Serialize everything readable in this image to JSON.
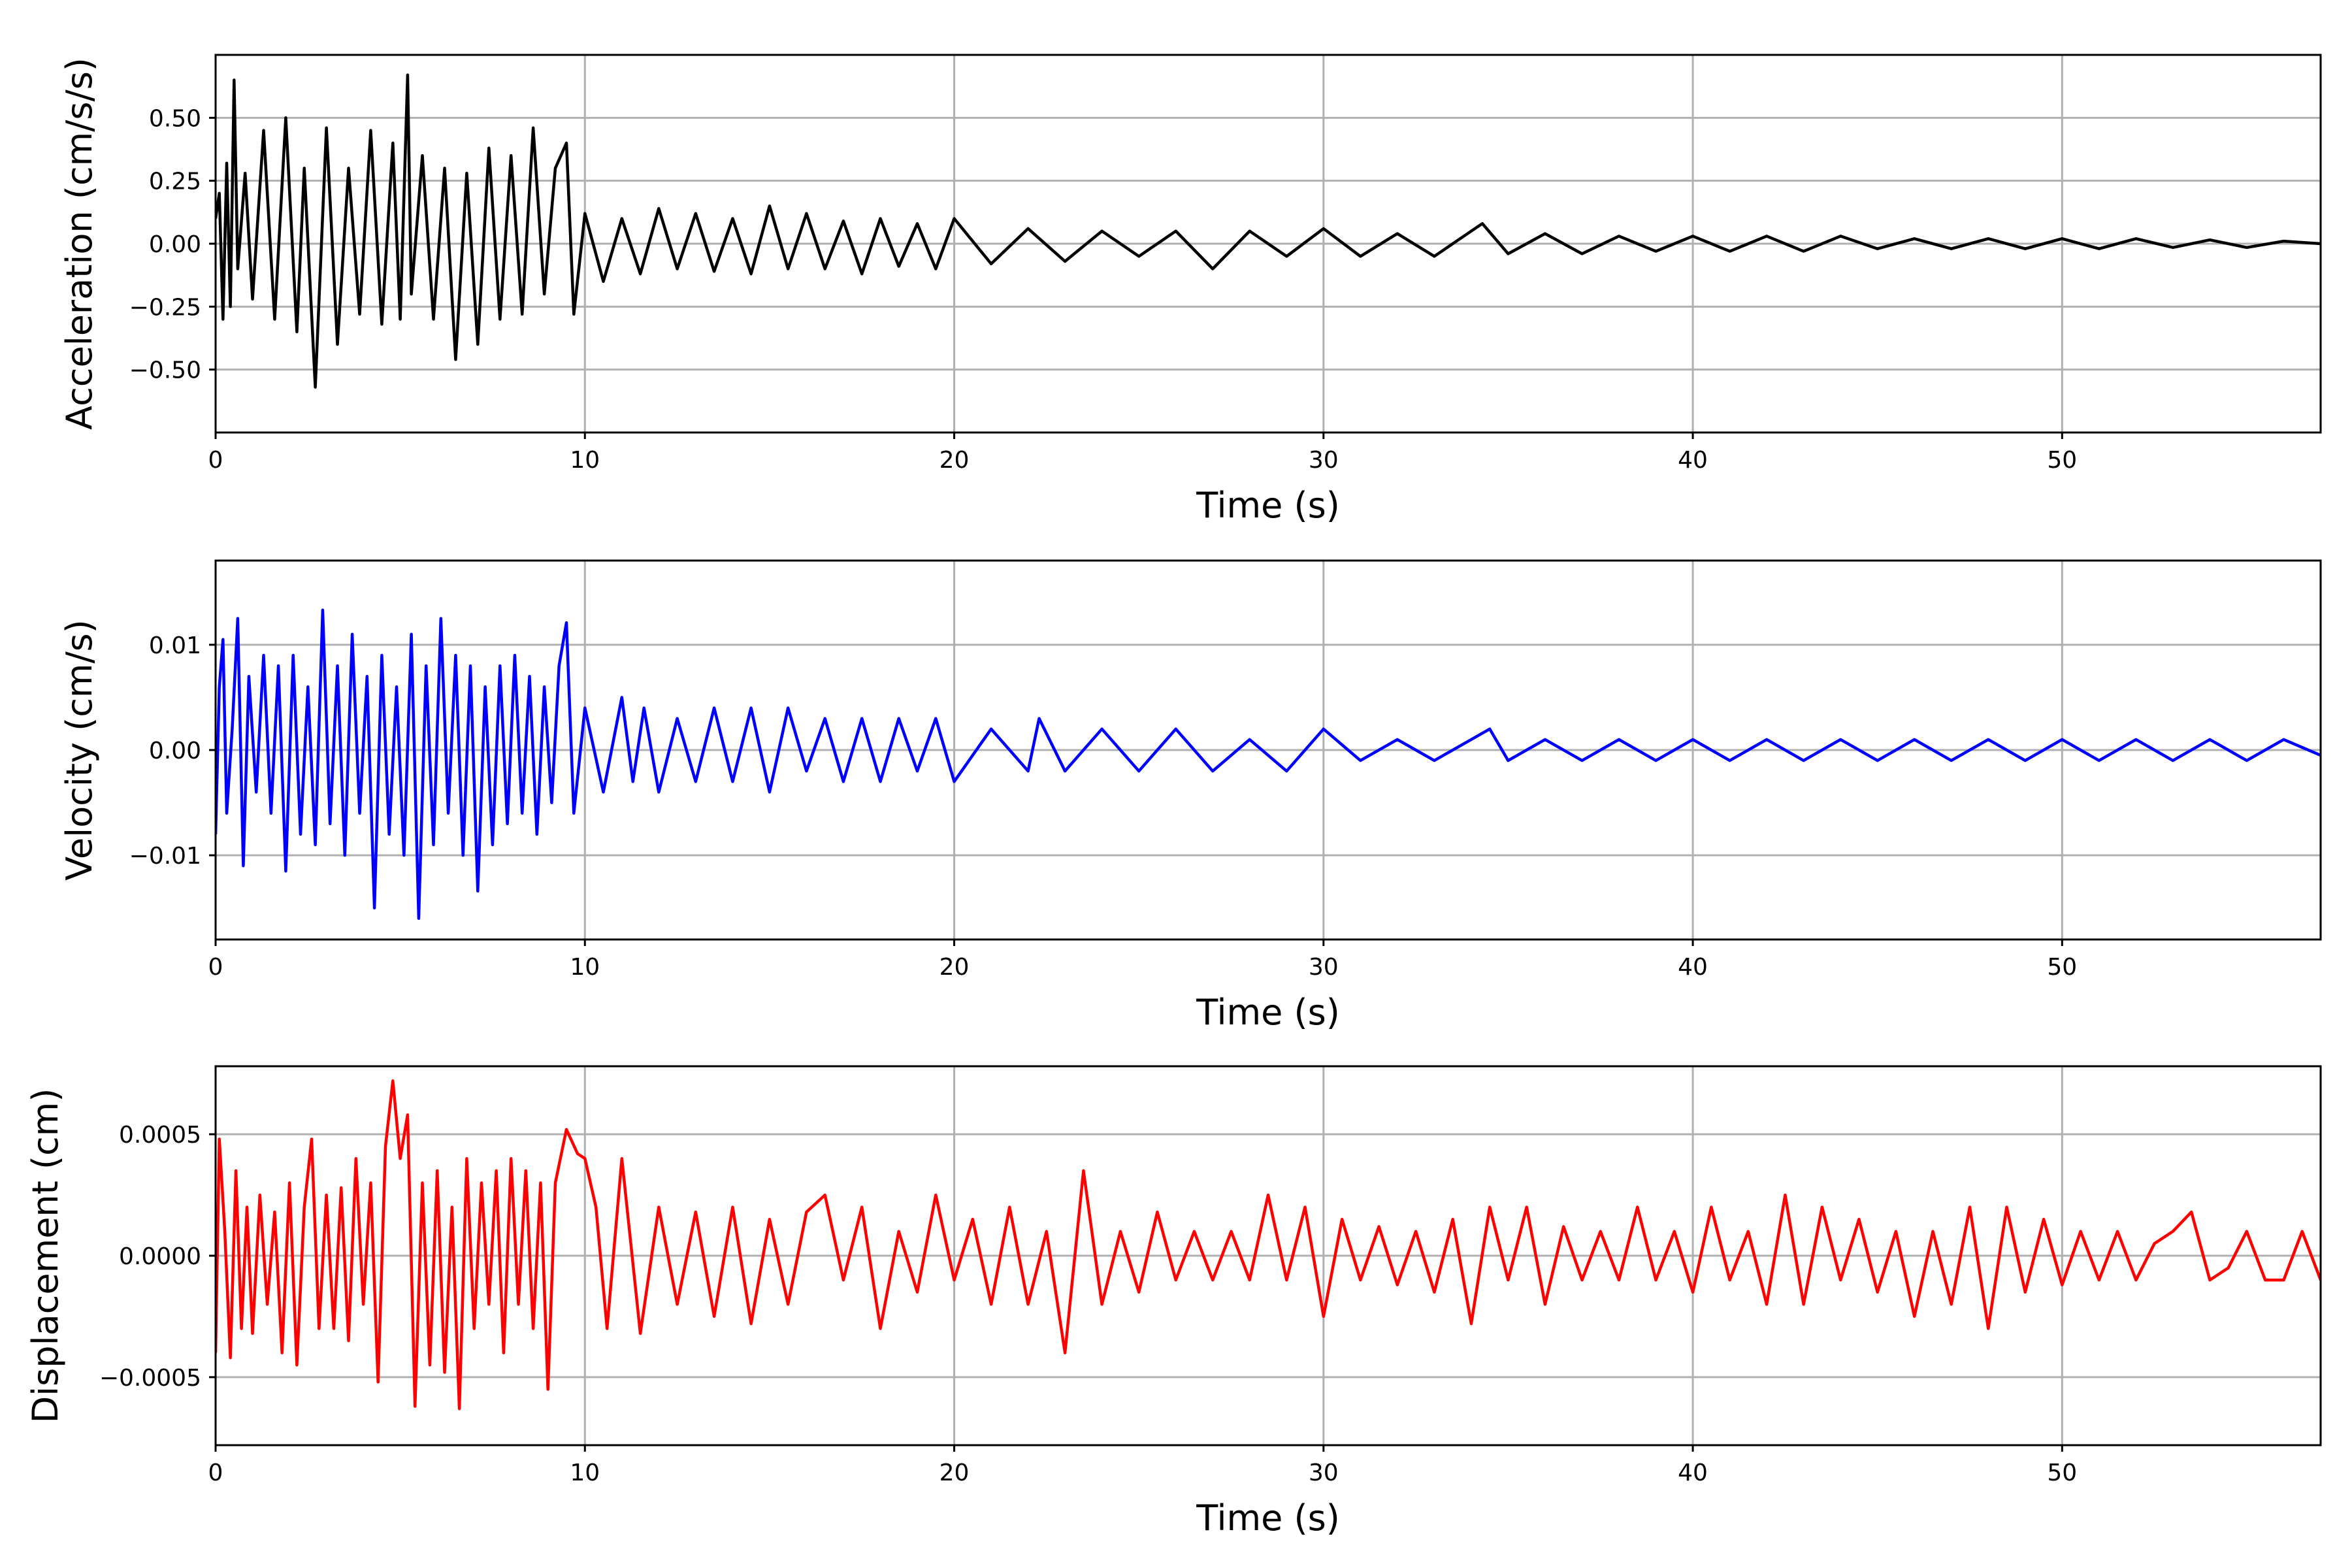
{
  "chart_data": [
    {
      "type": "line",
      "xlabel": "Time (s)",
      "ylabel": "Acceleration (cm/s/s)",
      "xlim": [
        0,
        57
      ],
      "ylim": [
        -0.75,
        0.75
      ],
      "x_ticks": [
        0,
        10,
        20,
        30,
        40,
        50
      ],
      "x_tick_labels": [
        "0",
        "10",
        "20",
        "30",
        "40",
        "50"
      ],
      "y_ticks": [
        -0.5,
        -0.25,
        0.0,
        0.25,
        0.5
      ],
      "y_tick_labels": [
        "−0.50",
        "−0.25",
        "0.00",
        "0.25",
        "0.50"
      ],
      "grid": true,
      "color": "#000000",
      "series": [
        {
          "x": [
            0,
            0.1,
            0.2,
            0.3,
            0.4,
            0.5,
            0.6,
            0.8,
            1,
            1.3,
            1.6,
            1.9,
            2.2,
            2.4,
            2.7,
            3,
            3.3,
            3.6,
            3.9,
            4.2,
            4.5,
            4.8,
            5,
            5.2,
            5.3,
            5.6,
            5.9,
            6.2,
            6.5,
            6.8,
            7.1,
            7.4,
            7.7,
            8,
            8.3,
            8.6,
            8.9,
            9.2,
            9.5,
            9.7,
            10,
            10.5,
            11,
            11.5,
            12,
            12.5,
            13,
            13.5,
            14,
            14.5,
            15,
            15.5,
            16,
            16.5,
            17,
            17.5,
            18,
            18.5,
            19,
            19.5,
            20,
            21,
            22,
            23,
            24,
            25,
            26,
            27,
            28,
            29,
            30,
            31,
            32,
            33,
            34,
            34.3,
            35,
            36,
            37,
            38,
            39,
            40,
            41,
            42,
            43,
            44,
            45,
            46,
            47,
            48,
            49,
            50,
            51,
            52,
            53,
            54,
            55,
            56,
            57
          ],
          "y": [
            0.1,
            0.2,
            -0.3,
            0.32,
            -0.25,
            0.65,
            -0.1,
            0.28,
            -0.22,
            0.45,
            -0.3,
            0.5,
            -0.35,
            0.3,
            -0.57,
            0.46,
            -0.4,
            0.3,
            -0.28,
            0.45,
            -0.32,
            0.4,
            -0.3,
            0.67,
            -0.2,
            0.35,
            -0.3,
            0.3,
            -0.46,
            0.28,
            -0.4,
            0.38,
            -0.3,
            0.35,
            -0.28,
            0.46,
            -0.2,
            0.3,
            0.4,
            -0.28,
            0.12,
            -0.15,
            0.1,
            -0.12,
            0.14,
            -0.1,
            0.12,
            -0.11,
            0.1,
            -0.12,
            0.15,
            -0.1,
            0.12,
            -0.1,
            0.09,
            -0.12,
            0.1,
            -0.09,
            0.08,
            -0.1,
            0.1,
            -0.08,
            0.06,
            -0.07,
            0.05,
            -0.05,
            0.05,
            -0.1,
            0.05,
            -0.05,
            0.06,
            -0.05,
            0.04,
            -0.05,
            0.05,
            0.08,
            -0.04,
            0.04,
            -0.04,
            0.03,
            -0.03,
            0.03,
            -0.03,
            0.03,
            -0.03,
            0.03,
            -0.02,
            0.02,
            -0.02,
            0.02,
            -0.02,
            0.02,
            -0.02,
            0.02,
            -0.015,
            0.015,
            -0.015,
            0.01,
            0.0
          ]
        }
      ]
    },
    {
      "type": "line",
      "xlabel": "Time (s)",
      "ylabel": "Velocity (cm/s)",
      "xlim": [
        0,
        57
      ],
      "ylim": [
        -0.018,
        0.018
      ],
      "x_ticks": [
        0,
        10,
        20,
        30,
        40,
        50
      ],
      "x_tick_labels": [
        "0",
        "10",
        "20",
        "30",
        "40",
        "50"
      ],
      "y_ticks": [
        -0.01,
        0.0,
        0.01
      ],
      "y_tick_labels": [
        "−0.01",
        "0.00",
        "0.01"
      ],
      "grid": true,
      "color": "#0000ff",
      "series": [
        {
          "x": [
            0,
            0.1,
            0.2,
            0.3,
            0.45,
            0.6,
            0.75,
            0.9,
            1.1,
            1.3,
            1.5,
            1.7,
            1.9,
            2.1,
            2.3,
            2.5,
            2.7,
            2.9,
            3.1,
            3.3,
            3.5,
            3.7,
            3.9,
            4.1,
            4.3,
            4.5,
            4.7,
            4.9,
            5.1,
            5.3,
            5.5,
            5.7,
            5.9,
            6.1,
            6.3,
            6.5,
            6.7,
            6.9,
            7.1,
            7.3,
            7.5,
            7.7,
            7.9,
            8.1,
            8.3,
            8.5,
            8.7,
            8.9,
            9.1,
            9.3,
            9.5,
            9.7,
            10,
            10.5,
            11,
            11.3,
            11.6,
            12,
            12.5,
            13,
            13.5,
            14,
            14.5,
            15,
            15.5,
            16,
            16.5,
            17,
            17.5,
            18,
            18.5,
            19,
            19.5,
            20,
            21,
            22,
            22.3,
            23,
            24,
            25,
            26,
            27,
            28,
            29,
            30,
            31,
            32,
            33,
            34,
            34.5,
            35,
            36,
            37,
            38,
            39,
            40,
            41,
            42,
            43,
            44,
            45,
            46,
            47,
            48,
            49,
            50,
            51,
            52,
            53,
            54,
            55,
            56,
            57
          ],
          "y": [
            -0.008,
            0.006,
            0.0105,
            -0.006,
            0.002,
            0.0125,
            -0.011,
            0.007,
            -0.004,
            0.009,
            -0.006,
            0.008,
            -0.0115,
            0.009,
            -0.008,
            0.006,
            -0.009,
            0.0133,
            -0.007,
            0.008,
            -0.01,
            0.011,
            -0.006,
            0.007,
            -0.015,
            0.009,
            -0.008,
            0.006,
            -0.01,
            0.011,
            -0.016,
            0.008,
            -0.009,
            0.0125,
            -0.006,
            0.009,
            -0.01,
            0.008,
            -0.0134,
            0.006,
            -0.009,
            0.008,
            -0.007,
            0.009,
            -0.006,
            0.007,
            -0.008,
            0.006,
            -0.005,
            0.008,
            0.0121,
            -0.006,
            0.004,
            -0.004,
            0.005,
            -0.003,
            0.004,
            -0.004,
            0.003,
            -0.003,
            0.004,
            -0.003,
            0.004,
            -0.004,
            0.004,
            -0.002,
            0.003,
            -0.003,
            0.003,
            -0.003,
            0.003,
            -0.002,
            0.003,
            -0.003,
            0.002,
            -0.002,
            0.003,
            -0.002,
            0.002,
            -0.002,
            0.002,
            -0.002,
            0.001,
            -0.002,
            0.002,
            -0.001,
            0.001,
            -0.001,
            0.001,
            0.002,
            -0.001,
            0.001,
            -0.001,
            0.001,
            -0.001,
            0.001,
            -0.001,
            0.001,
            -0.001,
            0.001,
            -0.001,
            0.001,
            -0.001,
            0.001,
            -0.001,
            0.001,
            -0.001,
            0.001,
            -0.001,
            0.001,
            -0.001,
            0.001,
            -0.0005
          ]
        }
      ]
    },
    {
      "type": "line",
      "xlabel": "Time (s)",
      "ylabel": "Displacement (cm)",
      "xlim": [
        0,
        57
      ],
      "ylim": [
        -0.00078,
        0.00078
      ],
      "x_ticks": [
        0,
        10,
        20,
        30,
        40,
        50
      ],
      "x_tick_labels": [
        "0",
        "10",
        "20",
        "30",
        "40",
        "50"
      ],
      "y_ticks": [
        -0.0005,
        0.0,
        0.0005
      ],
      "y_tick_labels": [
        "−0.0005",
        "0.0000",
        "0.0005"
      ],
      "grid": true,
      "color": "#ff0000",
      "series": [
        {
          "x": [
            0,
            0.1,
            0.25,
            0.4,
            0.55,
            0.7,
            0.85,
            1,
            1.2,
            1.4,
            1.6,
            1.8,
            2,
            2.2,
            2.4,
            2.6,
            2.8,
            3,
            3.2,
            3.4,
            3.6,
            3.8,
            4,
            4.2,
            4.4,
            4.6,
            4.8,
            5,
            5.2,
            5.4,
            5.6,
            5.8,
            6,
            6.2,
            6.4,
            6.6,
            6.8,
            7,
            7.2,
            7.4,
            7.6,
            7.8,
            8,
            8.2,
            8.4,
            8.6,
            8.8,
            9,
            9.2,
            9.5,
            9.8,
            10,
            10.3,
            10.6,
            11,
            11.5,
            12,
            12.5,
            13,
            13.5,
            14,
            14.5,
            15,
            15.5,
            16,
            16.5,
            17,
            17.5,
            18,
            18.5,
            19,
            19.5,
            20,
            20.5,
            21,
            21.5,
            22,
            22.5,
            23,
            23.5,
            24,
            24.5,
            25,
            25.5,
            26,
            26.5,
            27,
            27.5,
            28,
            28.5,
            29,
            29.5,
            30,
            30.5,
            31,
            31.5,
            32,
            32.5,
            33,
            33.5,
            34,
            34.5,
            35,
            35.5,
            36,
            36.5,
            37,
            37.5,
            38,
            38.5,
            39,
            39.5,
            40,
            40.5,
            41,
            41.5,
            42,
            42.5,
            43,
            43.5,
            44,
            44.5,
            45,
            45.5,
            46,
            46.5,
            47,
            47.5,
            48,
            48.5,
            49,
            49.5,
            50,
            50.5,
            51,
            51.5,
            52,
            52.5,
            53,
            53.5,
            54,
            54.5,
            55,
            55.5,
            56,
            56.5,
            57
          ],
          "y": [
            -0.0004,
            0.00048,
            0.0001,
            -0.00042,
            0.00035,
            -0.0003,
            0.0002,
            -0.00032,
            0.00025,
            -0.0002,
            0.00018,
            -0.0004,
            0.0003,
            -0.00045,
            0.0002,
            0.00048,
            -0.0003,
            0.00025,
            -0.0003,
            0.00028,
            -0.00035,
            0.0004,
            -0.0002,
            0.0003,
            -0.00052,
            0.00045,
            0.00072,
            0.0004,
            0.00058,
            -0.00062,
            0.0003,
            -0.00045,
            0.00035,
            -0.00048,
            0.0002,
            -0.00063,
            0.0004,
            -0.0003,
            0.0003,
            -0.0002,
            0.00035,
            -0.0004,
            0.0004,
            -0.0002,
            0.00035,
            -0.0003,
            0.0003,
            -0.00055,
            0.0003,
            0.00052,
            0.00042,
            0.0004,
            0.0002,
            -0.0003,
            0.0004,
            -0.00032,
            0.0002,
            -0.0002,
            0.00018,
            -0.00025,
            0.0002,
            -0.00028,
            0.00015,
            -0.0002,
            0.00018,
            0.00025,
            -0.0001,
            0.0002,
            -0.0003,
            0.0001,
            -0.00015,
            0.00025,
            -0.0001,
            0.00015,
            -0.0002,
            0.0002,
            -0.0002,
            0.0001,
            -0.0004,
            0.00035,
            -0.0002,
            0.0001,
            -0.00015,
            0.00018,
            -0.0001,
            0.0001,
            -0.0001,
            0.0001,
            -0.0001,
            0.00025,
            -0.0001,
            0.0002,
            -0.00025,
            0.00015,
            -0.0001,
            0.00012,
            -0.00012,
            0.0001,
            -0.00015,
            0.00015,
            -0.00028,
            0.0002,
            -0.0001,
            0.0002,
            -0.0002,
            0.00012,
            -0.0001,
            0.0001,
            -0.0001,
            0.0002,
            -0.0001,
            0.0001,
            -0.00015,
            0.0002,
            -0.0001,
            0.0001,
            -0.0002,
            0.00025,
            -0.0002,
            0.0002,
            -0.0001,
            0.00015,
            -0.00015,
            0.0001,
            -0.00025,
            0.0001,
            -0.0002,
            0.0002,
            -0.0003,
            0.0002,
            -0.00015,
            0.00015,
            -0.00012,
            0.0001,
            -0.0001,
            0.0001,
            -0.0001,
            5e-05,
            0.0001,
            0.00018,
            -0.0001,
            -5e-05,
            0.0001,
            -0.0001,
            -0.0001,
            0.0001,
            -0.0001
          ]
        }
      ]
    }
  ]
}
